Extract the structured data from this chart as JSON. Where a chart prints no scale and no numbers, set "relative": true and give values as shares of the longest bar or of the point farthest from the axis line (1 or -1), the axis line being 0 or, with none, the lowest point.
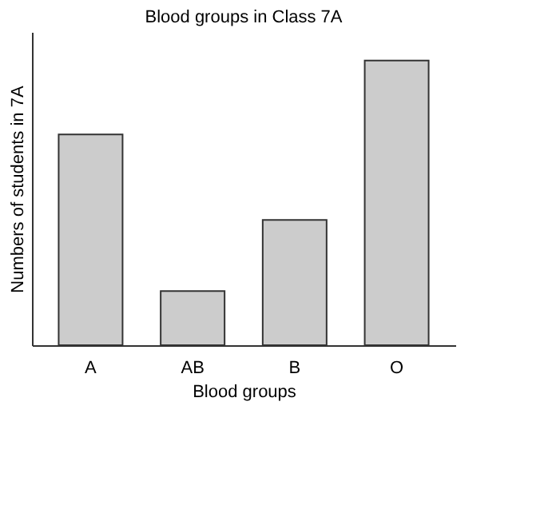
{
  "chart_data": {
    "type": "bar",
    "title": "Blood groups in Class 7A",
    "xlabel": "Blood groups",
    "ylabel": "Numbers of students in 7A",
    "categories": [
      "A",
      "AB",
      "B",
      "O"
    ],
    "values": [
      0.74,
      0.19,
      0.44,
      1
    ],
    "color": "#cccccc",
    "relative": true,
    "grid": false
  }
}
